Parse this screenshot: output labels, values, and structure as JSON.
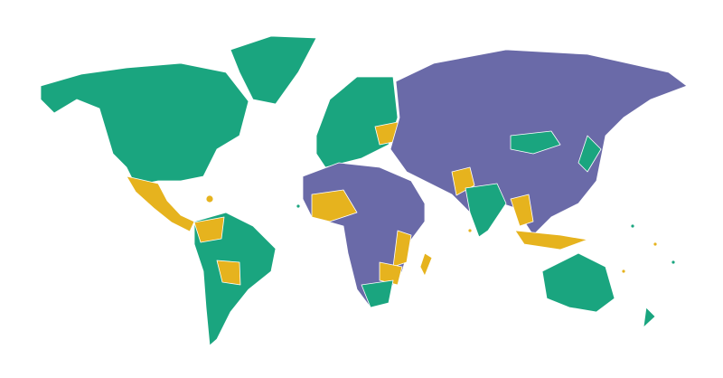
{
  "map": {
    "background": "#ffffff",
    "colors": {
      "green": "#1aa57f",
      "purple": "#6a6aa8",
      "yellow": "#e6b31e"
    }
  }
}
